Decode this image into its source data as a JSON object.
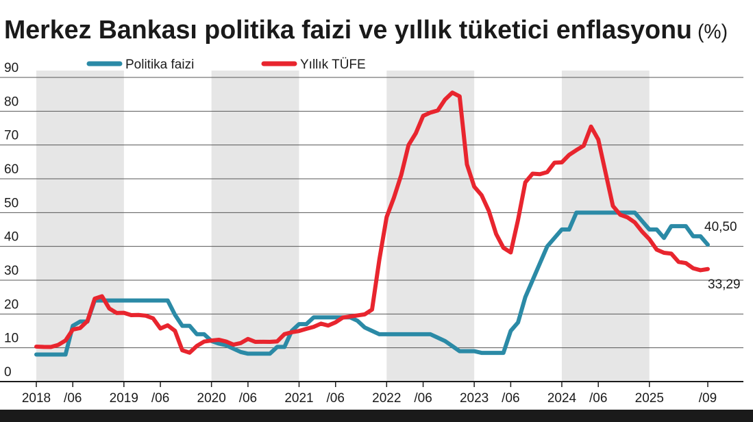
{
  "chart_data": {
    "type": "line",
    "title": "Merkez Bankası politika faizi ve yıllık tüketici enflasyonu",
    "title_unit": "(%)",
    "categories": [
      "2018",
      null,
      null,
      null,
      null,
      "/06",
      null,
      null,
      null,
      null,
      null,
      null,
      "2019",
      null,
      null,
      null,
      null,
      "/06",
      null,
      null,
      null,
      null,
      null,
      null,
      "2020",
      null,
      null,
      null,
      null,
      "/06",
      null,
      null,
      null,
      null,
      null,
      null,
      "2021",
      null,
      null,
      null,
      null,
      "/06",
      null,
      null,
      null,
      null,
      null,
      null,
      "2022",
      null,
      null,
      null,
      null,
      "/06",
      null,
      null,
      null,
      null,
      null,
      null,
      "2023",
      null,
      null,
      null,
      null,
      "/06",
      null,
      null,
      null,
      null,
      null,
      null,
      "2024",
      null,
      null,
      null,
      null,
      "/06",
      null,
      null,
      null,
      null,
      null,
      null,
      "2025",
      null,
      null,
      null,
      null,
      null,
      null,
      null,
      "/09"
    ],
    "series": [
      {
        "name": "Politika faizi",
        "color": "#2b8aa6",
        "values": [
          8,
          8,
          8,
          8,
          8,
          16.5,
          17.75,
          17.75,
          24,
          24,
          24,
          24,
          24,
          24,
          24,
          24,
          24,
          24,
          24,
          19.75,
          16.5,
          16.5,
          14,
          14,
          12,
          11.25,
          10.75,
          9.75,
          8.75,
          8.25,
          8.25,
          8.25,
          8.25,
          10.25,
          10.25,
          15,
          17,
          17,
          19,
          19,
          19,
          19,
          19,
          19,
          18,
          16,
          15,
          14,
          14,
          14,
          14,
          14,
          14,
          14,
          14,
          13,
          12,
          10.5,
          9,
          9,
          9,
          8.5,
          8.5,
          8.5,
          8.5,
          15,
          17.5,
          25,
          30,
          35,
          40,
          42.5,
          45,
          45,
          50,
          50,
          50,
          50,
          50,
          50,
          50,
          50,
          50,
          47.5,
          45,
          45,
          42.5,
          46,
          46,
          46,
          43,
          43,
          40.5
        ],
        "value_labels": [
          null,
          null,
          null,
          null,
          null,
          null,
          null,
          null,
          null,
          null,
          null,
          null,
          null,
          null,
          null,
          null,
          null,
          null,
          null,
          null,
          null,
          null,
          null,
          null,
          null,
          null,
          null,
          null,
          null,
          null,
          null,
          null,
          null,
          null,
          null,
          null,
          null,
          null,
          null,
          null,
          null,
          null,
          null,
          null,
          null,
          null,
          null,
          null,
          null,
          null,
          null,
          null,
          null,
          null,
          null,
          null,
          null,
          null,
          null,
          null,
          null,
          null,
          null,
          null,
          null,
          null,
          null,
          null,
          null,
          null,
          null,
          null,
          null,
          null,
          null,
          null,
          null,
          null,
          null,
          null,
          null,
          null,
          null,
          null,
          null,
          null,
          null,
          null,
          null,
          null,
          null,
          null,
          "40,50"
        ]
      },
      {
        "name": "Yıllık TÜFE",
        "color": "#e8252e",
        "values": [
          10.35,
          10.26,
          10.23,
          10.85,
          12.15,
          15.39,
          15.85,
          17.9,
          24.52,
          25.24,
          21.62,
          20.3,
          20.35,
          19.67,
          19.71,
          19.5,
          18.71,
          15.72,
          16.65,
          15.01,
          9.26,
          8.55,
          10.56,
          11.84,
          12.15,
          12.37,
          11.86,
          10.94,
          11.39,
          12.62,
          11.76,
          11.77,
          11.75,
          11.89,
          14.03,
          14.6,
          14.97,
          15.61,
          16.19,
          17.14,
          16.59,
          17.53,
          18.95,
          19.25,
          19.58,
          19.89,
          21.31,
          36.08,
          48.69,
          54.44,
          61.14,
          69.97,
          73.5,
          78.62,
          79.6,
          80.21,
          83.45,
          85.51,
          84.39,
          64.27,
          57.68,
          55.18,
          50.51,
          43.68,
          39.59,
          38.21,
          47.83,
          58.94,
          61.53,
          61.36,
          61.98,
          64.77,
          64.86,
          67.07,
          68.5,
          69.8,
          75.45,
          71.6,
          61.78,
          51.97,
          49.38,
          48.58,
          47.09,
          44.38,
          42.12,
          39.05,
          38.1,
          37.86,
          35.41,
          35.05,
          33.52,
          32.95,
          33.29
        ],
        "value_labels": [
          null,
          null,
          null,
          null,
          null,
          null,
          null,
          null,
          null,
          null,
          null,
          null,
          null,
          null,
          null,
          null,
          null,
          null,
          null,
          null,
          null,
          null,
          null,
          null,
          null,
          null,
          null,
          null,
          null,
          null,
          null,
          null,
          null,
          null,
          null,
          null,
          null,
          null,
          null,
          null,
          null,
          null,
          null,
          null,
          null,
          null,
          null,
          null,
          null,
          null,
          null,
          null,
          null,
          null,
          null,
          null,
          null,
          null,
          null,
          null,
          null,
          null,
          null,
          null,
          null,
          null,
          null,
          null,
          null,
          null,
          null,
          null,
          null,
          null,
          null,
          null,
          null,
          null,
          null,
          null,
          null,
          null,
          null,
          null,
          null,
          null,
          null,
          null,
          null,
          null,
          null,
          null,
          "33,29"
        ]
      }
    ],
    "ylim": [
      0,
      90
    ],
    "yticks": [
      0,
      10,
      20,
      30,
      40,
      50,
      60,
      70,
      80,
      90
    ],
    "grid": true
  }
}
